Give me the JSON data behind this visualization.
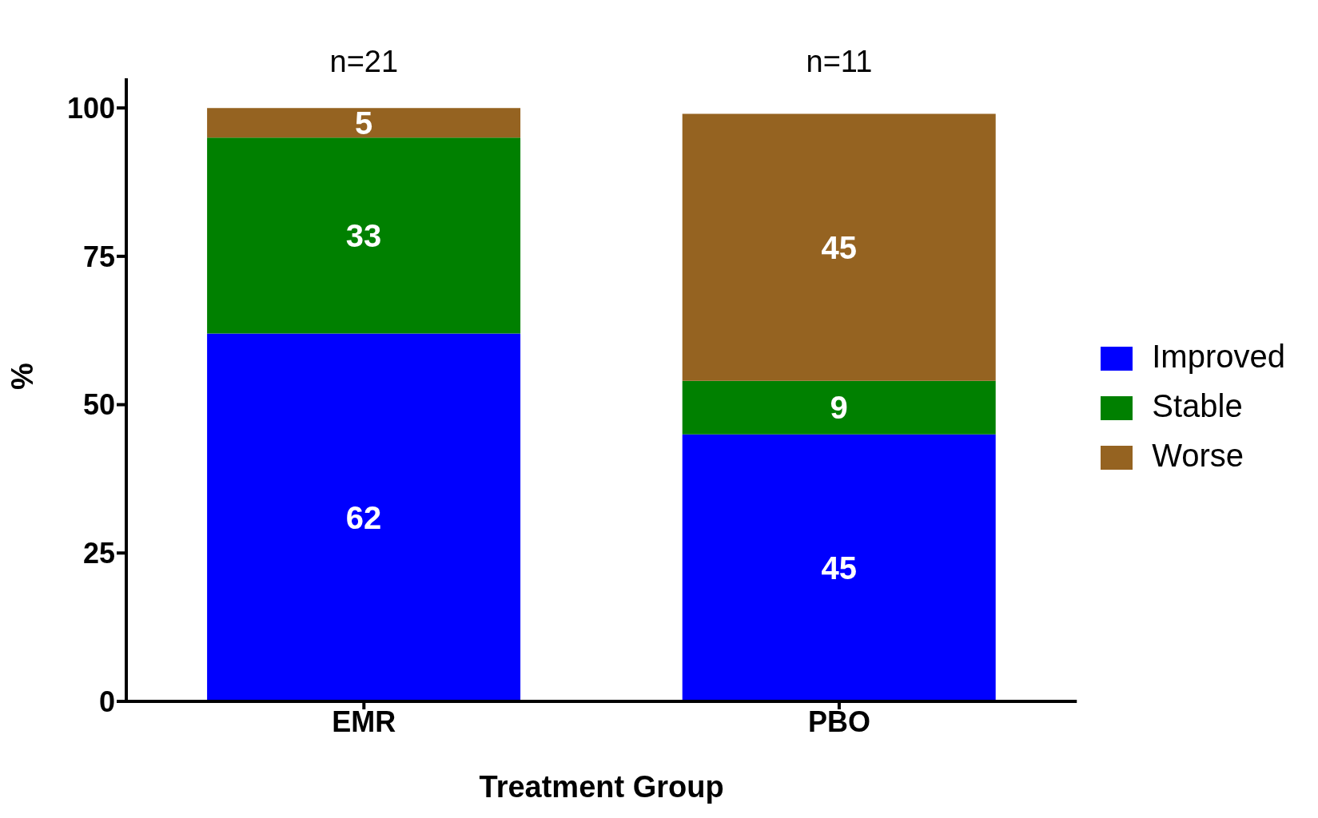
{
  "chart_data": {
    "type": "bar",
    "stacked": true,
    "xlabel": "Treatment Group",
    "ylabel": "%",
    "categories": [
      "EMR",
      "PBO"
    ],
    "series": [
      {
        "name": "Improved",
        "color": "#0000ff",
        "values": [
          62,
          45
        ]
      },
      {
        "name": "Stable",
        "color": "#008000",
        "values": [
          33,
          9
        ]
      },
      {
        "name": "Worse",
        "color": "#956321",
        "values": [
          5,
          45
        ]
      }
    ],
    "ylim": [
      0,
      105
    ],
    "yticks": [
      0,
      25,
      50,
      75,
      100
    ],
    "grid": false,
    "legend": "right",
    "data_labels": true,
    "annotations": [
      "n=21",
      "n=11"
    ]
  }
}
